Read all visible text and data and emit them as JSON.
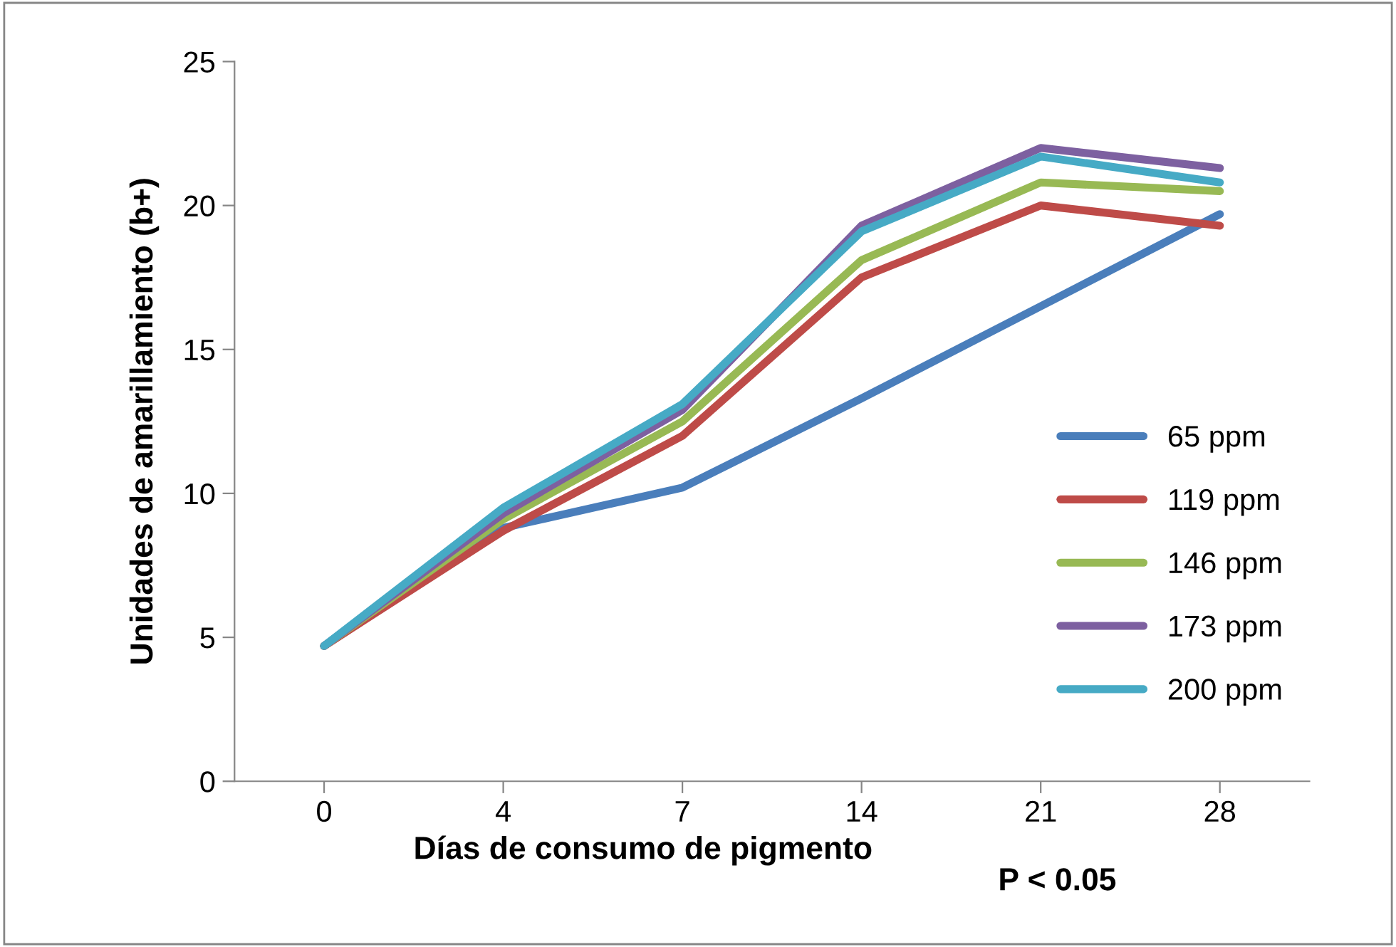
{
  "chart_data": {
    "type": "line",
    "xlabel": "Días de consumo de pigmento",
    "ylabel": "Unidades de amarillamiento (b+)",
    "annotations": [
      "P < 0.05"
    ],
    "categories": [
      "0",
      "4",
      "7",
      "14",
      "21",
      "28"
    ],
    "series": [
      {
        "name": "65 ppm",
        "color": "#4a7ebb",
        "values": [
          4.7,
          8.8,
          10.2,
          13.3,
          16.5,
          19.7
        ]
      },
      {
        "name": "119 ppm",
        "color": "#be4b48",
        "values": [
          4.7,
          8.7,
          12.0,
          17.5,
          20.0,
          19.3
        ]
      },
      {
        "name": "146 ppm",
        "color": "#98b954",
        "values": [
          4.7,
          9.1,
          12.5,
          18.1,
          20.8,
          20.5
        ]
      },
      {
        "name": "173 ppm",
        "color": "#7d60a0",
        "values": [
          4.7,
          9.3,
          12.9,
          19.3,
          22.0,
          21.3
        ]
      },
      {
        "name": "200 ppm",
        "color": "#46aac5",
        "values": [
          4.7,
          9.5,
          13.1,
          19.1,
          21.7,
          20.8
        ]
      }
    ],
    "ylim": [
      0,
      25
    ],
    "yticks": [
      0,
      5,
      10,
      15,
      20,
      25
    ],
    "grid": false,
    "legend": "right",
    "marker": "none",
    "line_style": "solid"
  }
}
